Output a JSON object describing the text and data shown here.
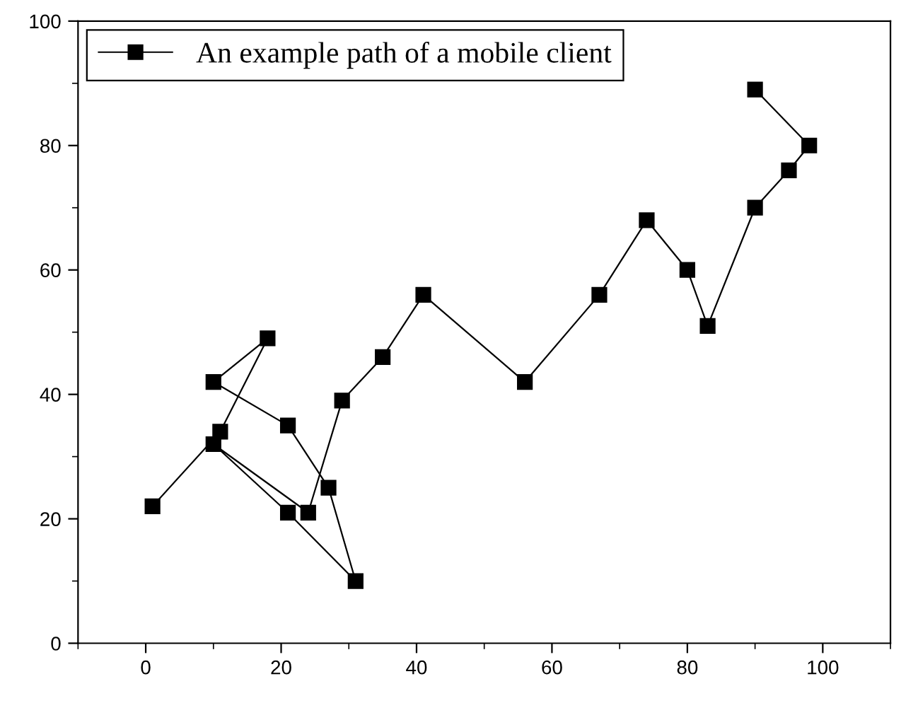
{
  "chart_data": {
    "type": "line",
    "xlim": [
      -10,
      110
    ],
    "ylim": [
      0,
      100
    ],
    "xticks": [
      0,
      20,
      40,
      60,
      80,
      100
    ],
    "yticks": [
      0,
      20,
      40,
      60,
      80,
      100
    ],
    "marker": "square",
    "line_style": "solid",
    "legend": "top left",
    "grid": false,
    "series": [
      {
        "name": "An example path of a mobile client",
        "color": "#000000",
        "x": [
          1,
          11,
          18,
          10,
          21,
          27,
          31,
          21,
          10,
          24,
          29,
          35,
          41,
          56,
          67,
          74,
          80,
          83,
          90,
          95,
          98,
          90
        ],
        "values": [
          22,
          34,
          49,
          42,
          35,
          25,
          10,
          21,
          32,
          21,
          39,
          46,
          56,
          42,
          56,
          68,
          60,
          51,
          70,
          76,
          80,
          89
        ]
      }
    ]
  }
}
